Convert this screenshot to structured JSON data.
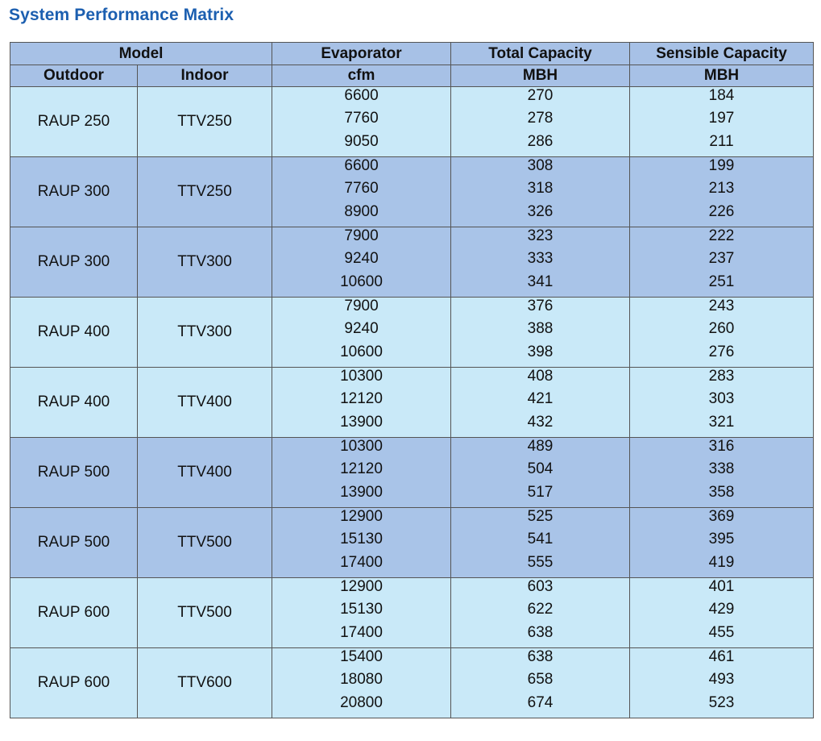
{
  "title": "System Performance Matrix",
  "headers": {
    "model": "Model",
    "outdoor": "Outdoor",
    "indoor": "Indoor",
    "evaporator": "Evaporator",
    "evaporator_unit": "cfm",
    "total_capacity": "Total Capacity",
    "total_capacity_unit": "MBH",
    "sensible_capacity": "Sensible Capacity",
    "sensible_capacity_unit": "MBH"
  },
  "colors": {
    "title": "#1c5fb0",
    "header_bg": "#a7c1e6",
    "row_light": "#c9e9f8",
    "row_dark": "#a9c4e8"
  },
  "groups": [
    {
      "outdoor": "RAUP 250",
      "indoor": "TTV250",
      "shade": "light",
      "cfm": [
        "6600",
        "7760",
        "9050"
      ],
      "total": [
        "270",
        "278",
        "286"
      ],
      "sensible": [
        "184",
        "197",
        "211"
      ]
    },
    {
      "outdoor": "RAUP 300",
      "indoor": "TTV250",
      "shade": "dark",
      "cfm": [
        "6600",
        "7760",
        "8900"
      ],
      "total": [
        "308",
        "318",
        "326"
      ],
      "sensible": [
        "199",
        "213",
        "226"
      ]
    },
    {
      "outdoor": "RAUP 300",
      "indoor": "TTV300",
      "shade": "dark",
      "cfm": [
        "7900",
        "9240",
        "10600"
      ],
      "total": [
        "323",
        "333",
        "341"
      ],
      "sensible": [
        "222",
        "237",
        "251"
      ]
    },
    {
      "outdoor": "RAUP 400",
      "indoor": "TTV300",
      "shade": "light",
      "cfm": [
        "7900",
        "9240",
        "10600"
      ],
      "total": [
        "376",
        "388",
        "398"
      ],
      "sensible": [
        "243",
        "260",
        "276"
      ]
    },
    {
      "outdoor": "RAUP 400",
      "indoor": "TTV400",
      "shade": "light",
      "cfm": [
        "10300",
        "12120",
        "13900"
      ],
      "total": [
        "408",
        "421",
        "432"
      ],
      "sensible": [
        "283",
        "303",
        "321"
      ]
    },
    {
      "outdoor": "RAUP 500",
      "indoor": "TTV400",
      "shade": "dark",
      "cfm": [
        "10300",
        "12120",
        "13900"
      ],
      "total": [
        "489",
        "504",
        "517"
      ],
      "sensible": [
        "316",
        "338",
        "358"
      ]
    },
    {
      "outdoor": "RAUP 500",
      "indoor": "TTV500",
      "shade": "dark",
      "cfm": [
        "12900",
        "15130",
        "17400"
      ],
      "total": [
        "525",
        "541",
        "555"
      ],
      "sensible": [
        "369",
        "395",
        "419"
      ]
    },
    {
      "outdoor": "RAUP 600",
      "indoor": "TTV500",
      "shade": "light",
      "cfm": [
        "12900",
        "15130",
        "17400"
      ],
      "total": [
        "603",
        "622",
        "638"
      ],
      "sensible": [
        "401",
        "429",
        "455"
      ]
    },
    {
      "outdoor": "RAUP 600",
      "indoor": "TTV600",
      "shade": "light",
      "cfm": [
        "15400",
        "18080",
        "20800"
      ],
      "total": [
        "638",
        "658",
        "674"
      ],
      "sensible": [
        "461",
        "493",
        "523"
      ]
    }
  ]
}
